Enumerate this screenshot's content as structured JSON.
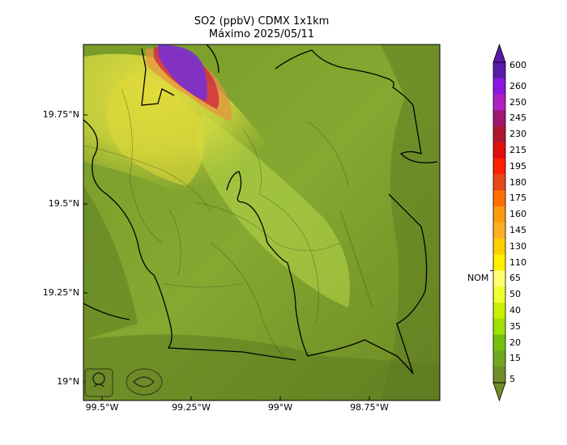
{
  "header": {
    "title_line1": "SO2 (ppbV) CDMX 1x1km",
    "title_line2": "Máximo 2025/05/11"
  },
  "axes": {
    "y_ticks": [
      "19.75°N",
      "19.5°N",
      "19.25°N",
      "19°N"
    ],
    "x_ticks": [
      "99.5°W",
      "99.25°W",
      "99°W",
      "98.75°W"
    ]
  },
  "colorbar": {
    "nom_label": "NOM",
    "levels": [
      "600",
      "260",
      "250",
      "245",
      "230",
      "215",
      "195",
      "180",
      "175",
      "160",
      "145",
      "130",
      "110",
      "65",
      "50",
      "40",
      "35",
      "20",
      "15",
      "5"
    ],
    "colors": [
      "#5a1aa8",
      "#8a18e0",
      "#b020c0",
      "#a01870",
      "#b01830",
      "#e01010",
      "#ff2000",
      "#e84818",
      "#ff7000",
      "#ff9a10",
      "#ffb020",
      "#ffd000",
      "#fff000",
      "#ffff70",
      "#f0ff30",
      "#c8f000",
      "#9ee000",
      "#78c010",
      "#70a820",
      "#6e8c28"
    ]
  },
  "logos": {
    "left_logo": "SEDEMA",
    "right_logo": "SIMAT"
  }
}
